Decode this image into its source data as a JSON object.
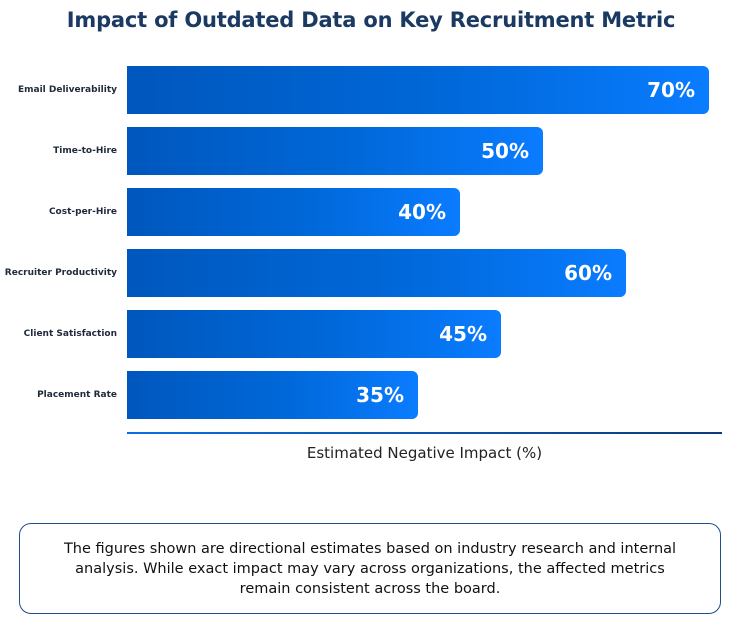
{
  "chart_data": {
    "type": "bar",
    "orientation": "horizontal",
    "title": "Impact of Outdated Data on Key Recruitment Metric",
    "xlabel": "Estimated Negative Impact (%)",
    "ylabel": "",
    "categories": [
      "Email Deliverability",
      "Time-to-Hire",
      "Cost-per-Hire",
      "Recruiter Productivity",
      "Client Satisfaction",
      "Placement Rate"
    ],
    "values": [
      70,
      50,
      40,
      60,
      45,
      35
    ],
    "value_labels": [
      "70%",
      "50%",
      "40%",
      "60%",
      "45%",
      "35%"
    ],
    "xlim": [
      0,
      72
    ],
    "grid": false,
    "bar_color_start": "#0057bd",
    "bar_color_end": "#0a7cff"
  },
  "note": {
    "text": "The figures shown are directional estimates based on industry research and internal analysis. While exact impact may vary across organizations, the affected metrics remain consistent across the board."
  }
}
